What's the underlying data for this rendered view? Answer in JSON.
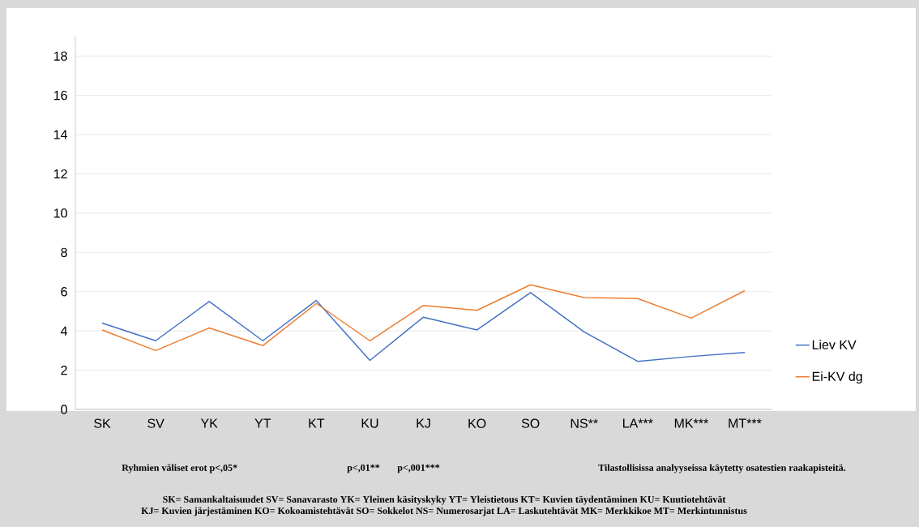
{
  "chart_data": {
    "type": "line",
    "categories": [
      "SK",
      "SV",
      "YK",
      "YT",
      "KT",
      "KU",
      "KJ",
      "KO",
      "SO",
      "NS**",
      "LA***",
      "MK***",
      "MT***"
    ],
    "series": [
      {
        "name": "Liev KV",
        "color": "#4472c4",
        "values": [
          4.4,
          3.5,
          5.5,
          3.5,
          5.55,
          2.5,
          4.7,
          4.05,
          5.95,
          3.95,
          2.45,
          2.7,
          2.9
        ]
      },
      {
        "name": "Ei-KV dg",
        "color": "#ed7d31",
        "values": [
          4.05,
          3.0,
          4.15,
          3.25,
          5.4,
          3.5,
          5.3,
          5.05,
          6.35,
          5.7,
          5.65,
          4.65,
          6.05
        ]
      }
    ],
    "ylim": [
      0,
      19
    ],
    "yticks": [
      0,
      2,
      4,
      6,
      8,
      10,
      12,
      14,
      16,
      18
    ],
    "grid": "y",
    "legend": "right",
    "marker": "none",
    "line_style": "solid",
    "annotations": [
      "Ryhmien väliset erot p<,05*",
      "p<,01**",
      "p<,001***",
      "Tilastollisissa analyyseissa käytetty osatestien raakapisteitä.",
      "SK= Samankaltaisuudet  SV= Sanavarasto  YK= Yleinen käsityskyky  YT= Yleistietous    KT= Kuvien täydentäminen  KU= Kuutiotehtävät",
      "KJ= Kuvien järjestäminen  KO= Kokoamistehtävät  SO= Sokkelot  NS= Numerosarjat  LA= Laskutehtävät  MK= Merkkikoe  MT= Merkintunnistus"
    ]
  }
}
